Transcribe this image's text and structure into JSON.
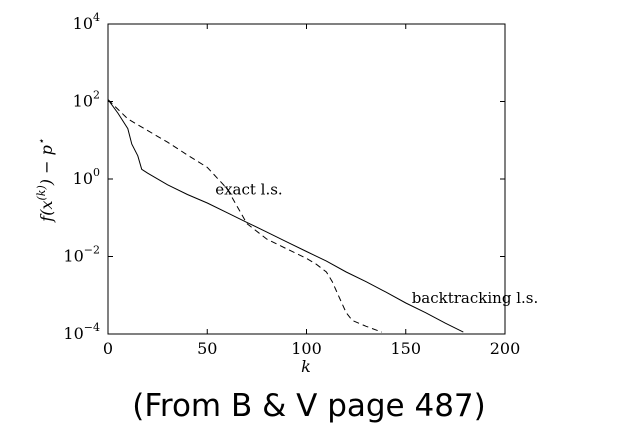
{
  "caption": "(From B & V page 487)",
  "chart_data": {
    "type": "line",
    "xlabel": "k",
    "ylabel": "f(x^(k)) − p*",
    "xlim": [
      0,
      200
    ],
    "ylim_exponent": [
      -4,
      4
    ],
    "yscale": "log",
    "x_ticks": [
      "0",
      "50",
      "100",
      "150",
      "200"
    ],
    "y_ticks": [
      {
        "base": "10",
        "exp": "−4"
      },
      {
        "base": "10",
        "exp": "−2"
      },
      {
        "base": "10",
        "exp": "0"
      },
      {
        "base": "10",
        "exp": "2"
      },
      {
        "base": "10",
        "exp": "4"
      }
    ],
    "grid": false,
    "series": [
      {
        "name": "exact l.s.",
        "style": "dashed",
        "x": [
          0,
          10,
          20,
          30,
          40,
          50,
          60,
          70,
          80,
          90,
          100,
          105,
          110,
          113,
          116,
          120,
          123,
          130,
          138
        ],
        "y_exp": [
          2.05,
          1.55,
          1.25,
          0.95,
          0.62,
          0.3,
          -0.25,
          -1.15,
          -1.55,
          -1.8,
          -2.05,
          -2.2,
          -2.4,
          -2.65,
          -3.0,
          -3.45,
          -3.65,
          -3.8,
          -3.95
        ]
      },
      {
        "name": "backtracking l.s.",
        "style": "solid",
        "x": [
          0,
          5,
          10,
          12,
          15,
          17,
          20,
          30,
          40,
          50,
          60,
          70,
          80,
          90,
          100,
          110,
          120,
          130,
          140,
          150,
          160,
          170,
          179
        ],
        "y_exp": [
          2.05,
          1.7,
          1.3,
          0.9,
          0.6,
          0.25,
          0.15,
          -0.15,
          -0.4,
          -0.62,
          -0.87,
          -1.12,
          -1.37,
          -1.62,
          -1.87,
          -2.12,
          -2.4,
          -2.65,
          -2.92,
          -3.2,
          -3.45,
          -3.72,
          -3.95
        ]
      }
    ],
    "annotations": [
      {
        "text": "exact l.s.",
        "x": 54,
        "y_exp": -0.4
      },
      {
        "text": "backtracking l.s.",
        "x": 153,
        "y_exp": -3.2
      }
    ]
  }
}
